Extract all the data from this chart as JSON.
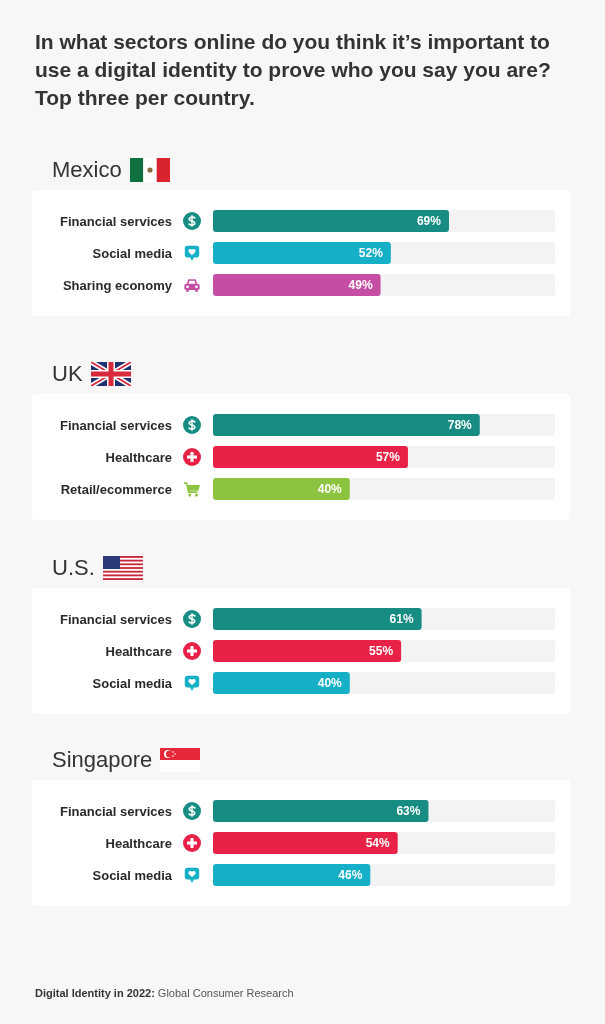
{
  "chart_data": [
    {
      "type": "bar",
      "orientation": "horizontal",
      "title": "In what sectors online do you think it’s important to use a digital identity to prove who you say you are? Top three per country.",
      "subtitle": "Mexico",
      "categories": [
        "Financial services",
        "Social media",
        "Sharing economy"
      ],
      "values": [
        69,
        52,
        49
      ],
      "value_labels": [
        "69%",
        "52%",
        "49%"
      ],
      "colors": [
        "#178c82",
        "#15b0c7",
        "#c54da4"
      ],
      "xlim": [
        0,
        100
      ],
      "tick_labels": "y"
    },
    {
      "type": "bar",
      "orientation": "horizontal",
      "subtitle": "UK",
      "categories": [
        "Financial services",
        "Healthcare",
        "Retail/ecommerce"
      ],
      "values": [
        78,
        57,
        40
      ],
      "value_labels": [
        "78%",
        "57%",
        "40%"
      ],
      "colors": [
        "#178c82",
        "#e82146",
        "#8cc43f"
      ],
      "xlim": [
        0,
        100
      ],
      "tick_labels": "y"
    },
    {
      "type": "bar",
      "orientation": "horizontal",
      "subtitle": "U.S.",
      "categories": [
        "Financial services",
        "Healthcare",
        "Social media"
      ],
      "values": [
        61,
        55,
        40
      ],
      "value_labels": [
        "61%",
        "55%",
        "40%"
      ],
      "colors": [
        "#178c82",
        "#e82146",
        "#15b0c7"
      ],
      "xlim": [
        0,
        100
      ],
      "tick_labels": "y"
    },
    {
      "type": "bar",
      "orientation": "horizontal",
      "subtitle": "Singapore",
      "categories": [
        "Financial services",
        "Healthcare",
        "Social media"
      ],
      "values": [
        63,
        54,
        46
      ],
      "value_labels": [
        "63%",
        "54%",
        "46%"
      ],
      "colors": [
        "#178c82",
        "#e82146",
        "#15b0c7"
      ],
      "xlim": [
        0,
        100
      ],
      "tick_labels": "y",
      "annotations": [
        "Digital Identity in 2022: Global Consumer Research"
      ]
    }
  ]
}
